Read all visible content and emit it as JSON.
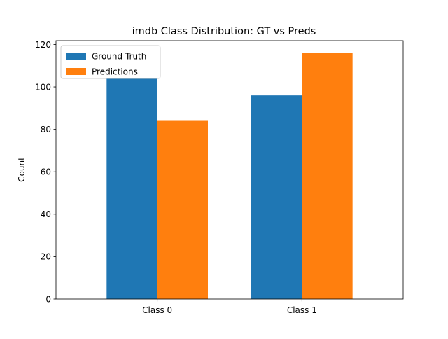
{
  "chart_data": {
    "type": "bar",
    "title": "imdb Class Distribution: GT vs Preds",
    "xlabel": "",
    "ylabel": "Count",
    "categories": [
      "Class 0",
      "Class 1"
    ],
    "series": [
      {
        "name": "Ground Truth",
        "color": "#1f77b4",
        "values": [
          104,
          96
        ]
      },
      {
        "name": "Predictions",
        "color": "#ff7f0e",
        "values": [
          84,
          116
        ]
      }
    ],
    "ylim": [
      0,
      121.8
    ],
    "yticks": [
      0,
      20,
      40,
      60,
      80,
      100,
      120
    ],
    "grid": false,
    "legend_position": "top-left"
  }
}
